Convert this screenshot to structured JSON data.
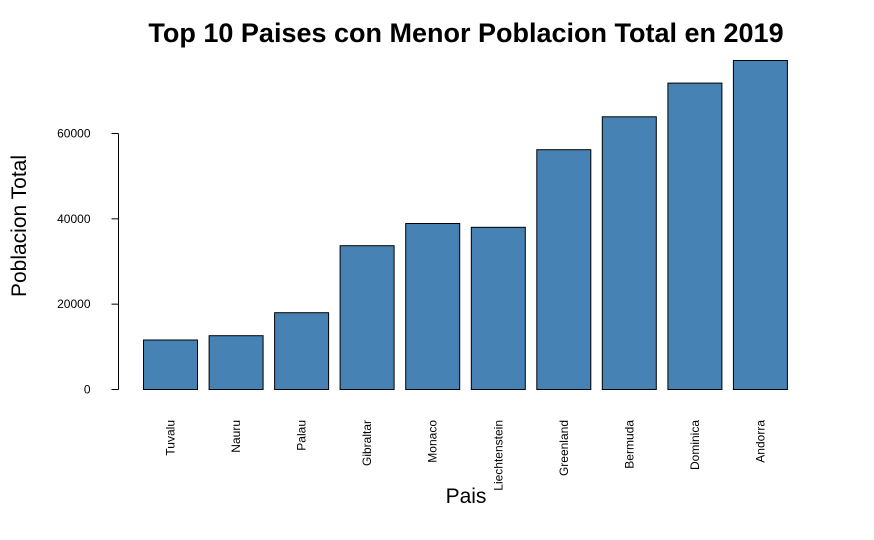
{
  "colors": {
    "bar_fill": "#4682b4"
  },
  "chart_data": {
    "type": "bar",
    "title": "Top 10 Paises con Menor Poblacion Total en 2019",
    "xlabel": "Pais",
    "ylabel": "Poblacion Total",
    "categories": [
      "Tuvalu",
      "Nauru",
      "Palau",
      "Gibraltar",
      "Monaco",
      "Liechtenstein",
      "Greenland",
      "Bermuda",
      "Dominica",
      "Andorra"
    ],
    "values": [
      11600,
      12600,
      18000,
      33700,
      38900,
      38000,
      56200,
      63900,
      71800,
      77100
    ],
    "yticks": [
      0,
      20000,
      40000,
      60000
    ],
    "ylim": [
      0,
      77100
    ],
    "grid": false,
    "legend": "none"
  }
}
